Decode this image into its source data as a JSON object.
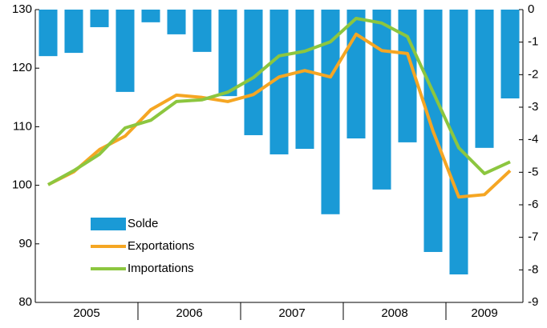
{
  "chart_data": {
    "type": "combo",
    "categories": [
      "2005",
      null,
      null,
      null,
      "2006",
      null,
      null,
      null,
      "2007",
      null,
      null,
      null,
      "2008",
      null,
      null,
      null,
      "2009",
      null,
      null
    ],
    "series": [
      {
        "name": "Solde",
        "type": "bar",
        "axis": "y2",
        "color": "#1a9ad6",
        "values": [
          -1.43,
          -1.33,
          -0.54,
          -2.53,
          -0.39,
          -0.76,
          -1.3,
          -2.66,
          -3.86,
          -4.45,
          -4.28,
          -6.29,
          -3.96,
          -5.53,
          -4.08,
          -7.45,
          -8.14,
          -4.25,
          -2.73
        ]
      },
      {
        "name": "Exportations",
        "type": "line",
        "axis": "y",
        "color": "#f5a623",
        "values": [
          100.1,
          102.3,
          106.1,
          108.4,
          112.9,
          115.4,
          115.0,
          114.3,
          115.5,
          118.5,
          119.6,
          118.5,
          125.8,
          123.0,
          122.5,
          109.2,
          98.0,
          98.4,
          102.5
        ]
      },
      {
        "name": "Importations",
        "type": "line",
        "axis": "y",
        "color": "#8cc63f",
        "values": [
          100.1,
          102.5,
          105.3,
          109.8,
          111.1,
          114.3,
          114.6,
          115.9,
          118.4,
          122.1,
          122.9,
          124.5,
          128.5,
          127.7,
          125.4,
          115.9,
          106.4,
          102.0,
          104.0
        ]
      }
    ],
    "ylim": [
      80,
      130
    ],
    "yticks": [
      80,
      90,
      100,
      110,
      120,
      130
    ],
    "y2lim": [
      -9,
      0
    ],
    "y2ticks": [
      -9,
      -8,
      -7,
      -6,
      -5,
      -4,
      -3,
      -2,
      -1,
      0
    ]
  }
}
